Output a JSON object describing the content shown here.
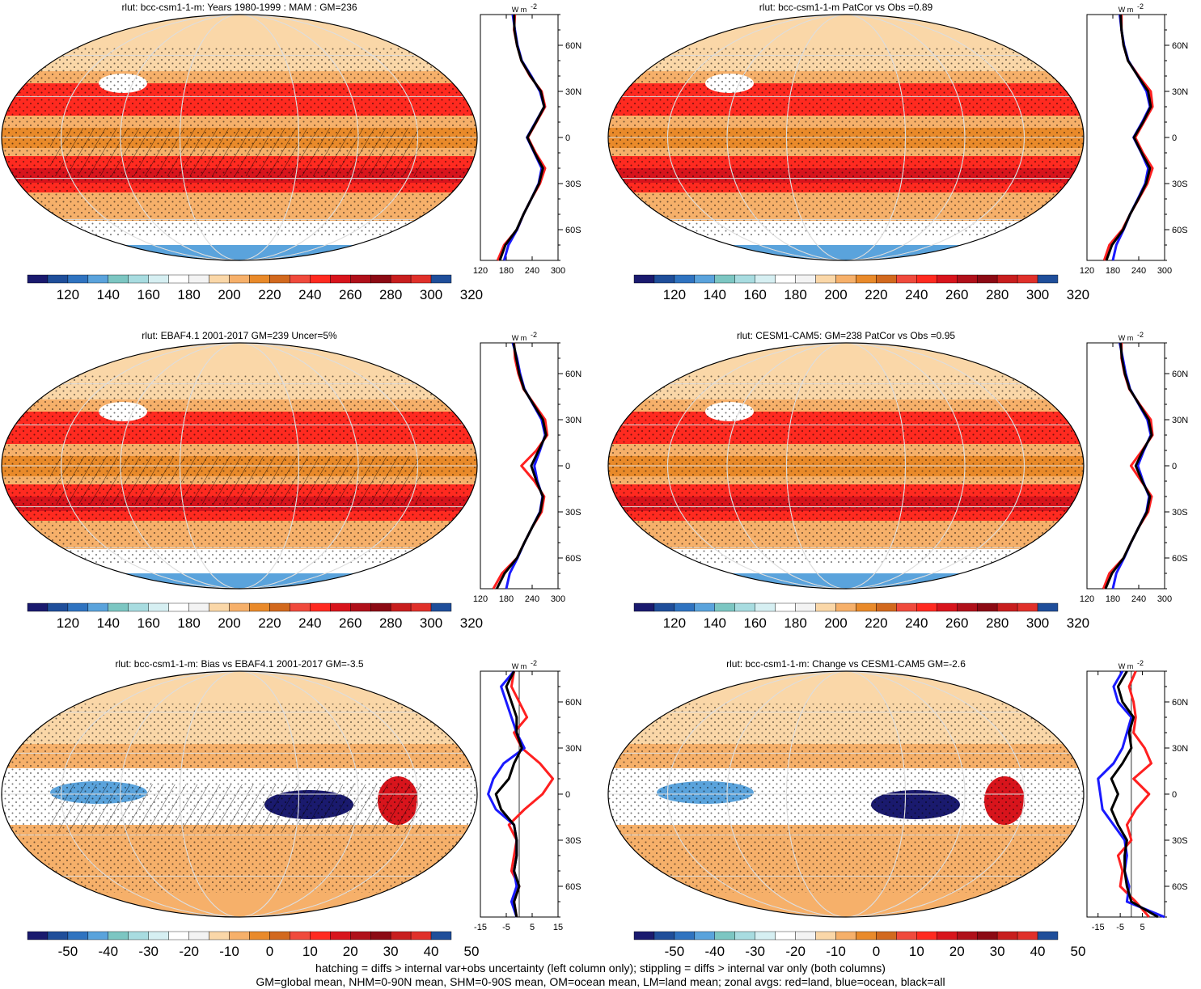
{
  "figure": {
    "variable": "rlut",
    "footnote_lines": [
      "hatching = diffs > internal var+obs uncertainty (left column only); stippling = diffs > internal var only (both columns)",
      "GM=global mean, NHM=0-90N mean, SHM=0-90S mean, OM=ocean mean, LM=land mean; zonal avgs: red=land, blue=ocean, black=all"
    ]
  },
  "colors": {
    "abs_scale": [
      "#1a1a6e",
      "#1f4e9a",
      "#2f73c0",
      "#5aa3dc",
      "#7cc6c2",
      "#a8dce0",
      "#d6eff2",
      "#ffffff",
      "#f3f3f3",
      "#fad7a8",
      "#f6b06a",
      "#e98a2a",
      "#d2691e",
      "#f04a3c",
      "#ff2a20",
      "#d8141c",
      "#b0101a",
      "#8c0a14",
      "#c81e1e",
      "#e0302a",
      "#1f4e9a"
    ],
    "diff_scale": [
      "#1a1a6e",
      "#1f4e9a",
      "#2f73c0",
      "#5aa3dc",
      "#7cc6c2",
      "#a8dce0",
      "#d6eff2",
      "#ffffff",
      "#f3f3f3",
      "#fad7a8",
      "#f6b06a",
      "#e98a2a",
      "#d2691e",
      "#f04a3c",
      "#ff2a20",
      "#d8141c",
      "#b0101a",
      "#8c0a14",
      "#c81e1e",
      "#e0302a",
      "#1f4e9a"
    ],
    "land_line": "#ff2020",
    "ocean_line": "#1a1aff",
    "all_line": "#000000"
  },
  "chart_data": [
    {
      "type": "map",
      "id": "top-left",
      "title": "rlut: bcc-csm1-1-m: Years 1980-1999 : MAM : GM=236",
      "colorbar_labels": [
        "120",
        "140",
        "160",
        "180",
        "200",
        "220",
        "240",
        "260",
        "280",
        "300",
        "320"
      ],
      "colorbar_kind": "abs",
      "zonal": {
        "unit": "W m",
        "unit_sup": "-2",
        "x_ticks": [
          "120",
          "180",
          "240",
          "300"
        ],
        "x_range": [
          120,
          300
        ],
        "lat_labels": [
          "60N",
          "30N",
          "0",
          "30S",
          "60S"
        ],
        "lat": [
          80,
          70,
          60,
          50,
          40,
          30,
          20,
          10,
          0,
          -10,
          -20,
          -30,
          -40,
          -50,
          -60,
          -70,
          -80
        ],
        "land": [
          200,
          198,
          205,
          215,
          235,
          262,
          270,
          250,
          230,
          248,
          270,
          258,
          238,
          220,
          205,
          175,
          160
        ],
        "ocean": [
          195,
          200,
          206,
          216,
          238,
          258,
          268,
          248,
          228,
          245,
          262,
          255,
          238,
          220,
          205,
          185,
          175
        ],
        "all": [
          198,
          199,
          205,
          215,
          236,
          260,
          268,
          249,
          229,
          246,
          265,
          256,
          238,
          220,
          204,
          178,
          165
        ]
      }
    },
    {
      "type": "map",
      "id": "top-right",
      "title": "rlut: bcc-csm1-1-m PatCor vs Obs =0.89",
      "colorbar_labels": [
        "120",
        "140",
        "160",
        "180",
        "200",
        "220",
        "240",
        "260",
        "280",
        "300",
        "320"
      ],
      "colorbar_kind": "abs",
      "zonal": {
        "unit": "W m",
        "unit_sup": "-2",
        "x_ticks": [
          "120",
          "180",
          "240",
          "300"
        ],
        "x_range": [
          120,
          300
        ],
        "lat_labels": [
          "60N",
          "30N",
          "0",
          "30S",
          "60S"
        ],
        "lat": [
          80,
          70,
          60,
          50,
          40,
          30,
          20,
          10,
          0,
          -10,
          -20,
          -30,
          -40,
          -50,
          -60,
          -70,
          -80
        ],
        "land": [
          200,
          200,
          205,
          215,
          240,
          268,
          272,
          252,
          232,
          250,
          272,
          260,
          240,
          220,
          202,
          172,
          160
        ],
        "ocean": [
          196,
          200,
          206,
          216,
          238,
          258,
          266,
          248,
          228,
          246,
          262,
          255,
          238,
          220,
          205,
          188,
          180
        ],
        "all": [
          198,
          200,
          205,
          215,
          238,
          262,
          268,
          250,
          229,
          247,
          266,
          257,
          239,
          220,
          204,
          178,
          165
        ]
      }
    },
    {
      "type": "map",
      "id": "mid-left",
      "title": "rlut: EBAF4.1 2001-2017 GM=239 Uncer=5%",
      "colorbar_labels": [
        "120",
        "140",
        "160",
        "180",
        "200",
        "220",
        "240",
        "260",
        "280",
        "300",
        "320"
      ],
      "colorbar_kind": "abs",
      "zonal": {
        "unit": "W m",
        "unit_sup": "-2",
        "x_ticks": [
          "120",
          "180",
          "240",
          "300"
        ],
        "x_range": [
          120,
          300
        ],
        "lat_labels": [
          "60N",
          "30N",
          "0",
          "30S",
          "60S"
        ],
        "lat": [
          80,
          70,
          60,
          50,
          40,
          30,
          20,
          10,
          0,
          -10,
          -20,
          -30,
          -40,
          -50,
          -60,
          -70,
          -80
        ],
        "land": [
          198,
          200,
          208,
          220,
          245,
          270,
          275,
          250,
          215,
          245,
          268,
          262,
          240,
          222,
          205,
          170,
          150
        ],
        "ocean": [
          195,
          205,
          212,
          222,
          242,
          262,
          270,
          258,
          245,
          252,
          264,
          258,
          240,
          222,
          206,
          188,
          180
        ],
        "all": [
          197,
          203,
          210,
          221,
          243,
          265,
          272,
          255,
          238,
          250,
          265,
          259,
          240,
          222,
          205,
          176,
          158
        ]
      }
    },
    {
      "type": "map",
      "id": "mid-right",
      "title": "rlut: CESM1-CAM5: GM=238 PatCor vs Obs =0.95",
      "colorbar_labels": [
        "120",
        "140",
        "160",
        "180",
        "200",
        "220",
        "240",
        "260",
        "280",
        "300",
        "320"
      ],
      "colorbar_kind": "abs",
      "zonal": {
        "unit": "W m",
        "unit_sup": "-2",
        "x_ticks": [
          "120",
          "180",
          "240",
          "300"
        ],
        "x_range": [
          120,
          300
        ],
        "lat_labels": [
          "60N",
          "30N",
          "0",
          "30S",
          "60S"
        ],
        "lat": [
          80,
          70,
          60,
          50,
          40,
          30,
          20,
          10,
          0,
          -10,
          -20,
          -30,
          -40,
          -50,
          -60,
          -70,
          -80
        ],
        "land": [
          200,
          200,
          207,
          218,
          242,
          268,
          272,
          248,
          222,
          246,
          270,
          262,
          240,
          222,
          205,
          172,
          158
        ],
        "ocean": [
          196,
          203,
          210,
          220,
          240,
          260,
          268,
          252,
          238,
          250,
          264,
          258,
          240,
          222,
          206,
          188,
          180
        ],
        "all": [
          198,
          201,
          208,
          219,
          241,
          263,
          270,
          250,
          233,
          248,
          266,
          259,
          240,
          222,
          205,
          178,
          163
        ]
      }
    },
    {
      "type": "map",
      "id": "bottom-left",
      "title": "rlut: bcc-csm1-1-m: Bias vs EBAF4.1 2001-2017 GM=-3.5",
      "colorbar_labels": [
        "-50",
        "-40",
        "-30",
        "-20",
        "-10",
        "0",
        "10",
        "20",
        "30",
        "40",
        "50"
      ],
      "colorbar_kind": "diff",
      "zonal": {
        "unit": "W m",
        "unit_sup": "-2",
        "x_ticks": [
          "-15",
          "-5",
          "5",
          "15"
        ],
        "x_range": [
          -15,
          15
        ],
        "lat_labels": [
          "60N",
          "30N",
          "0",
          "30S",
          "60S"
        ],
        "lat": [
          80,
          70,
          60,
          50,
          40,
          30,
          20,
          10,
          0,
          -10,
          -20,
          -30,
          -40,
          -50,
          -60,
          -70,
          -80
        ],
        "land": [
          -2,
          -3,
          0,
          3,
          -2,
          1,
          8,
          13,
          9,
          2,
          -4,
          -1,
          -2,
          -3,
          0,
          -2,
          -1
        ],
        "ocean": [
          -2,
          -7,
          -5,
          -3,
          -1,
          2,
          -6,
          -10,
          -12,
          -9,
          -2,
          -1,
          -1,
          -2,
          -1,
          -3,
          -1
        ],
        "all": [
          -2,
          -5,
          -3,
          -1,
          -1,
          1,
          -2,
          -4,
          -9,
          -7,
          -2,
          -1,
          -1,
          -2,
          0,
          -2,
          -1
        ]
      }
    },
    {
      "type": "map",
      "id": "bottom-right",
      "title": "rlut: bcc-csm1-1-m: Change vs CESM1-CAM5 GM=-2.6",
      "colorbar_labels": [
        "-50",
        "-40",
        "-30",
        "-20",
        "-10",
        "0",
        "10",
        "20",
        "30",
        "40",
        "50"
      ],
      "colorbar_kind": "diff",
      "zonal": {
        "unit": "W m",
        "unit_sup": "-2",
        "x_ticks": [
          "-15",
          "-5",
          "5"
        ],
        "x_range": [
          -20,
          15
        ],
        "lat_labels": [
          "60N",
          "30N",
          "0",
          "30S",
          "60S"
        ],
        "lat": [
          80,
          70,
          60,
          50,
          40,
          30,
          20,
          10,
          0,
          -10,
          -20,
          -30,
          -40,
          -50,
          -60,
          -70,
          -80
        ],
        "land": [
          2,
          -1,
          1,
          2,
          1,
          6,
          9,
          1,
          8,
          2,
          -2,
          0,
          -6,
          -4,
          -5,
          2,
          8
        ],
        "ocean": [
          -4,
          -8,
          -6,
          0,
          -2,
          -4,
          -8,
          -15,
          -14,
          -13,
          -8,
          -3,
          -2,
          -3,
          -1,
          -2,
          15
        ],
        "all": [
          -2,
          -6,
          -4,
          1,
          -1,
          0,
          -4,
          -9,
          -6,
          -9,
          -6,
          -2,
          -3,
          -3,
          -2,
          0,
          12
        ]
      }
    }
  ]
}
